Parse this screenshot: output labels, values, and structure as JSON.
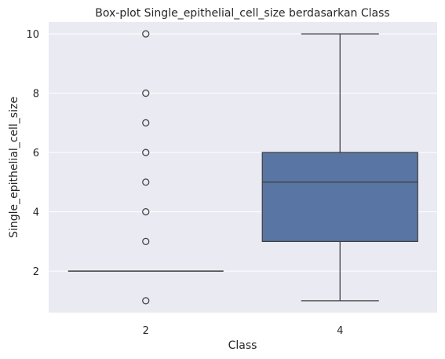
{
  "chart_data": {
    "type": "box",
    "title": "Box-plot Single_epithelial_cell_size berdasarkan Class",
    "xlabel": "Class",
    "ylabel": "Single_epithelial_cell_size",
    "categories": [
      "2",
      "4"
    ],
    "ylim": [
      0.6,
      10.4
    ],
    "yticks": [
      2,
      4,
      6,
      8,
      10
    ],
    "grid": true,
    "boxes": [
      {
        "category": "2",
        "whisker_low": 2,
        "q1": 2,
        "median": 2,
        "q3": 2,
        "whisker_high": 2,
        "outliers": [
          1,
          3,
          4,
          5,
          6,
          7,
          8,
          10
        ]
      },
      {
        "category": "4",
        "whisker_low": 1,
        "q1": 3,
        "median": 5,
        "q3": 6,
        "whisker_high": 10,
        "outliers": []
      }
    ],
    "colors": {
      "box_fill": "#5975a4",
      "line": "#3f3f3f",
      "plot_bg": "#eaeaf2",
      "grid": "#ffffff"
    }
  }
}
